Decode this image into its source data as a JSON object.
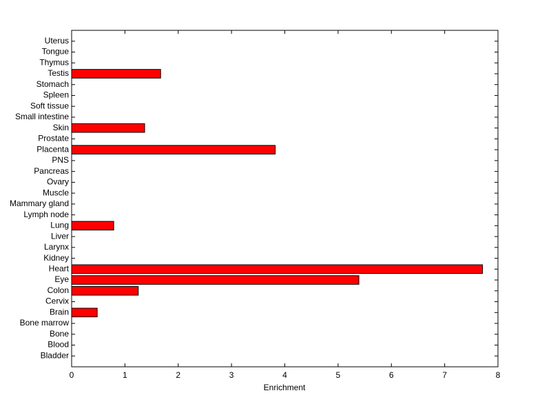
{
  "chart_data": {
    "type": "barh",
    "xlabel": "Enrichment",
    "categories": [
      "Bladder",
      "Blood",
      "Bone",
      "Bone marrow",
      "Brain",
      "Cervix",
      "Colon",
      "Eye",
      "Heart",
      "Kidney",
      "Larynx",
      "Liver",
      "Lung",
      "Lymph node",
      "Mammary gland",
      "Muscle",
      "Ovary",
      "Pancreas",
      "PNS",
      "Placenta",
      "Prostate",
      "Skin",
      "Small intestine",
      "Soft tissue",
      "Spleen",
      "Stomach",
      "Testis",
      "Thymus",
      "Tongue",
      "Uterus"
    ],
    "values": [
      0,
      0,
      0,
      0,
      0.48,
      0,
      1.25,
      5.39,
      7.71,
      0,
      0,
      0,
      0.79,
      0,
      0,
      0,
      0,
      0,
      0,
      3.82,
      0,
      1.37,
      0,
      0,
      0,
      0,
      1.67,
      0,
      0,
      0
    ],
    "color": "#ff0000",
    "xlim": [
      0,
      8
    ],
    "xticks": [
      0,
      1,
      2,
      3,
      4,
      5,
      6,
      7,
      8
    ]
  }
}
